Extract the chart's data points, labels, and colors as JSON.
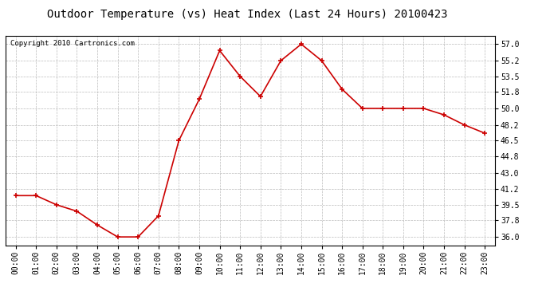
{
  "title": "Outdoor Temperature (vs) Heat Index (Last 24 Hours) 20100423",
  "copyright_text": "Copyright 2010 Cartronics.com",
  "x_labels": [
    "00:00",
    "01:00",
    "02:00",
    "03:00",
    "04:00",
    "05:00",
    "06:00",
    "07:00",
    "08:00",
    "09:00",
    "10:00",
    "11:00",
    "12:00",
    "13:00",
    "14:00",
    "15:00",
    "16:00",
    "17:00",
    "18:00",
    "19:00",
    "20:00",
    "21:00",
    "22:00",
    "23:00"
  ],
  "y_values": [
    40.5,
    40.5,
    39.5,
    38.8,
    37.3,
    36.0,
    36.0,
    38.3,
    46.5,
    51.0,
    56.3,
    53.5,
    51.3,
    55.2,
    57.0,
    55.2,
    52.1,
    50.0,
    50.0,
    50.0,
    50.0,
    49.3,
    48.2,
    47.3
  ],
  "ylim_min": 35.1,
  "ylim_max": 57.9,
  "yticks": [
    36.0,
    37.8,
    39.5,
    41.2,
    43.0,
    44.8,
    46.5,
    48.2,
    50.0,
    51.8,
    53.5,
    55.2,
    57.0
  ],
  "line_color": "#cc0000",
  "marker": "+",
  "marker_size": 5,
  "marker_linewidth": 1.2,
  "grid_color": "#bbbbbb",
  "bg_color": "#ffffff",
  "title_fontsize": 10,
  "tick_fontsize": 7,
  "copyright_fontsize": 6.5
}
